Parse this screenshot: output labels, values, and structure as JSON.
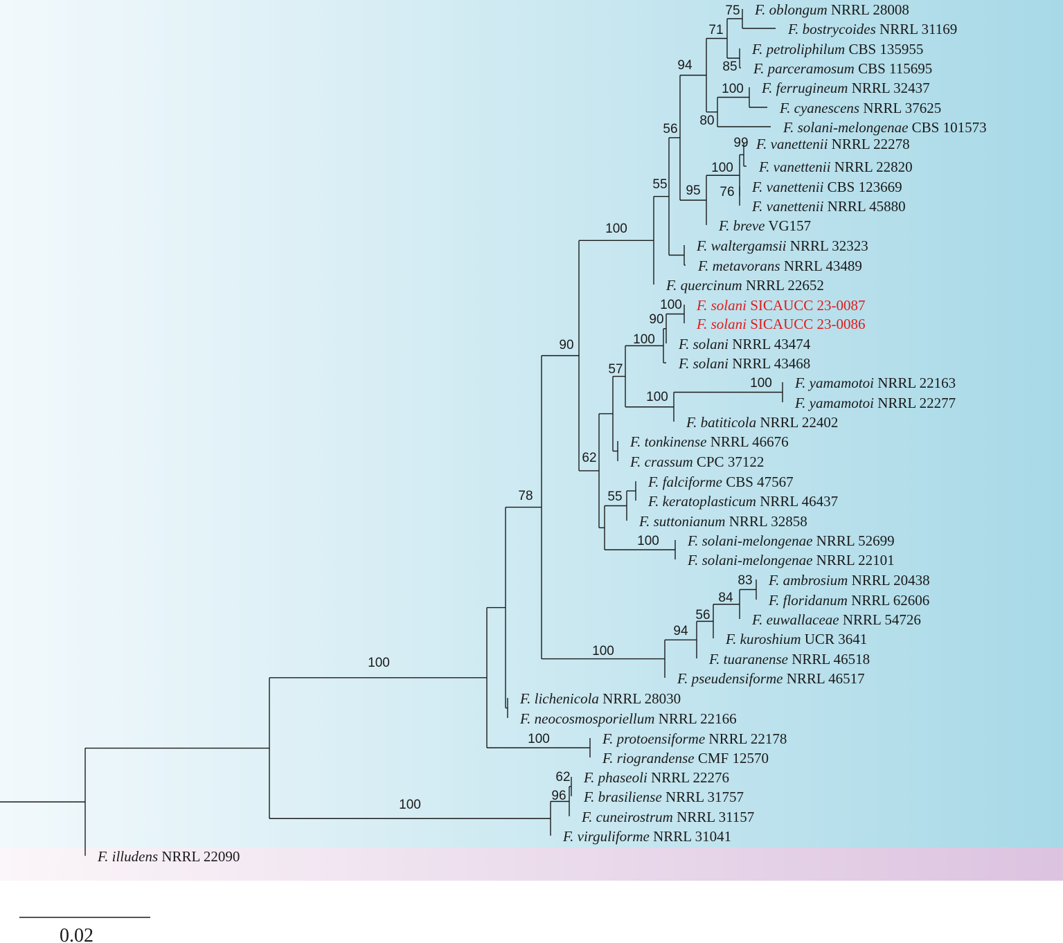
{
  "colors": {
    "ingroup_band_start": "#f2f9fc",
    "ingroup_band_end": "#a8d9e7",
    "outgroup_band_start": "#fbf6f9",
    "outgroup_band_end": "#dcc3e0",
    "highlight_taxon": "#e01b1b",
    "lines": "#1a1a1a"
  },
  "scale_bar": {
    "label": "0.02"
  },
  "taxa": [
    {
      "sp": "F. oblongum",
      "strain": "NRRL 28008"
    },
    {
      "sp": "F. bostrycoides",
      "strain": "NRRL 31169"
    },
    {
      "sp": "F. petroliphilum",
      "strain": "CBS 135955"
    },
    {
      "sp": "F. parceramosum",
      "strain": "CBS 115695"
    },
    {
      "sp": "F. ferrugineum",
      "strain": "NRRL 32437"
    },
    {
      "sp": "F. cyanescens",
      "strain": "NRRL 37625"
    },
    {
      "sp": "F. solani-melongenae",
      "strain": "CBS 101573"
    },
    {
      "sp": "F. vanettenii",
      "strain": "NRRL 22278"
    },
    {
      "sp": "F. vanettenii",
      "strain": "NRRL 22820"
    },
    {
      "sp": "F. vanettenii",
      "strain": "CBS 123669"
    },
    {
      "sp": "F. vanettenii",
      "strain": "NRRL 45880"
    },
    {
      "sp": "F. breve",
      "strain": "VG157"
    },
    {
      "sp": "F. waltergamsii",
      "strain": "NRRL 32323"
    },
    {
      "sp": "F. metavorans",
      "strain": "NRRL 43489"
    },
    {
      "sp": "F. quercinum",
      "strain": "NRRL 22652"
    },
    {
      "sp": "F. solani",
      "strain": "SICAUCC 23-0087",
      "highlight": true
    },
    {
      "sp": "F. solani",
      "strain": "SICAUCC 23-0086",
      "highlight": true
    },
    {
      "sp": "F. solani",
      "strain": "NRRL 43474"
    },
    {
      "sp": "F. solani",
      "strain": "NRRL 43468"
    },
    {
      "sp": "F. yamamotoi",
      "strain": "NRRL 22163"
    },
    {
      "sp": "F. yamamotoi",
      "strain": "NRRL 22277"
    },
    {
      "sp": "F. batiticola",
      "strain": "NRRL 22402"
    },
    {
      "sp": "F. tonkinense",
      "strain": "NRRL 46676"
    },
    {
      "sp": "F. crassum",
      "strain": "CPC 37122"
    },
    {
      "sp": "F. falciforme",
      "strain": "CBS 47567"
    },
    {
      "sp": "F. keratoplasticum",
      "strain": "NRRL 46437"
    },
    {
      "sp": "F. suttonianum",
      "strain": "NRRL 32858"
    },
    {
      "sp": "F. solani-melongenae",
      "strain": "NRRL 52699"
    },
    {
      "sp": "F. solani-melongenae",
      "strain": "NRRL 22101"
    },
    {
      "sp": "F. ambrosium",
      "strain": "NRRL 20438"
    },
    {
      "sp": "F. floridanum",
      "strain": "NRRL 62606"
    },
    {
      "sp": "F. euwallaceae",
      "strain": "NRRL 54726"
    },
    {
      "sp": "F. kuroshium",
      "strain": "UCR 3641"
    },
    {
      "sp": "F. tuaranense",
      "strain": "NRRL 46518"
    },
    {
      "sp": "F. pseudensiforme",
      "strain": "NRRL 46517"
    },
    {
      "sp": "F. lichenicola",
      "strain": "NRRL 28030"
    },
    {
      "sp": "F. neocosmosporiellum",
      "strain": "NRRL 22166"
    },
    {
      "sp": "F. protoensiforme",
      "strain": "NRRL 22178"
    },
    {
      "sp": "F. riograndense",
      "strain": "CMF 12570"
    },
    {
      "sp": "F. phaseoli",
      "strain": "NRRL 22276"
    },
    {
      "sp": "F. brasiliense",
      "strain": "NRRL 31757"
    },
    {
      "sp": "F. cuneirostrum",
      "strain": "NRRL 31157"
    },
    {
      "sp": "F. virguliforme",
      "strain": "NRRL 31041"
    },
    {
      "sp": "F. illudens",
      "strain": "NRRL 22090"
    }
  ],
  "bootstrap_values": [
    "75",
    "71",
    "85",
    "94",
    "100",
    "80",
    "99",
    "100",
    "76",
    "95",
    "56",
    "55",
    "100",
    "100",
    "90",
    "100",
    "57",
    "100",
    "100",
    "62",
    "55",
    "100",
    "90",
    "83",
    "84",
    "56",
    "94",
    "100",
    "78",
    "100",
    "100",
    "100",
    "62",
    "96"
  ]
}
